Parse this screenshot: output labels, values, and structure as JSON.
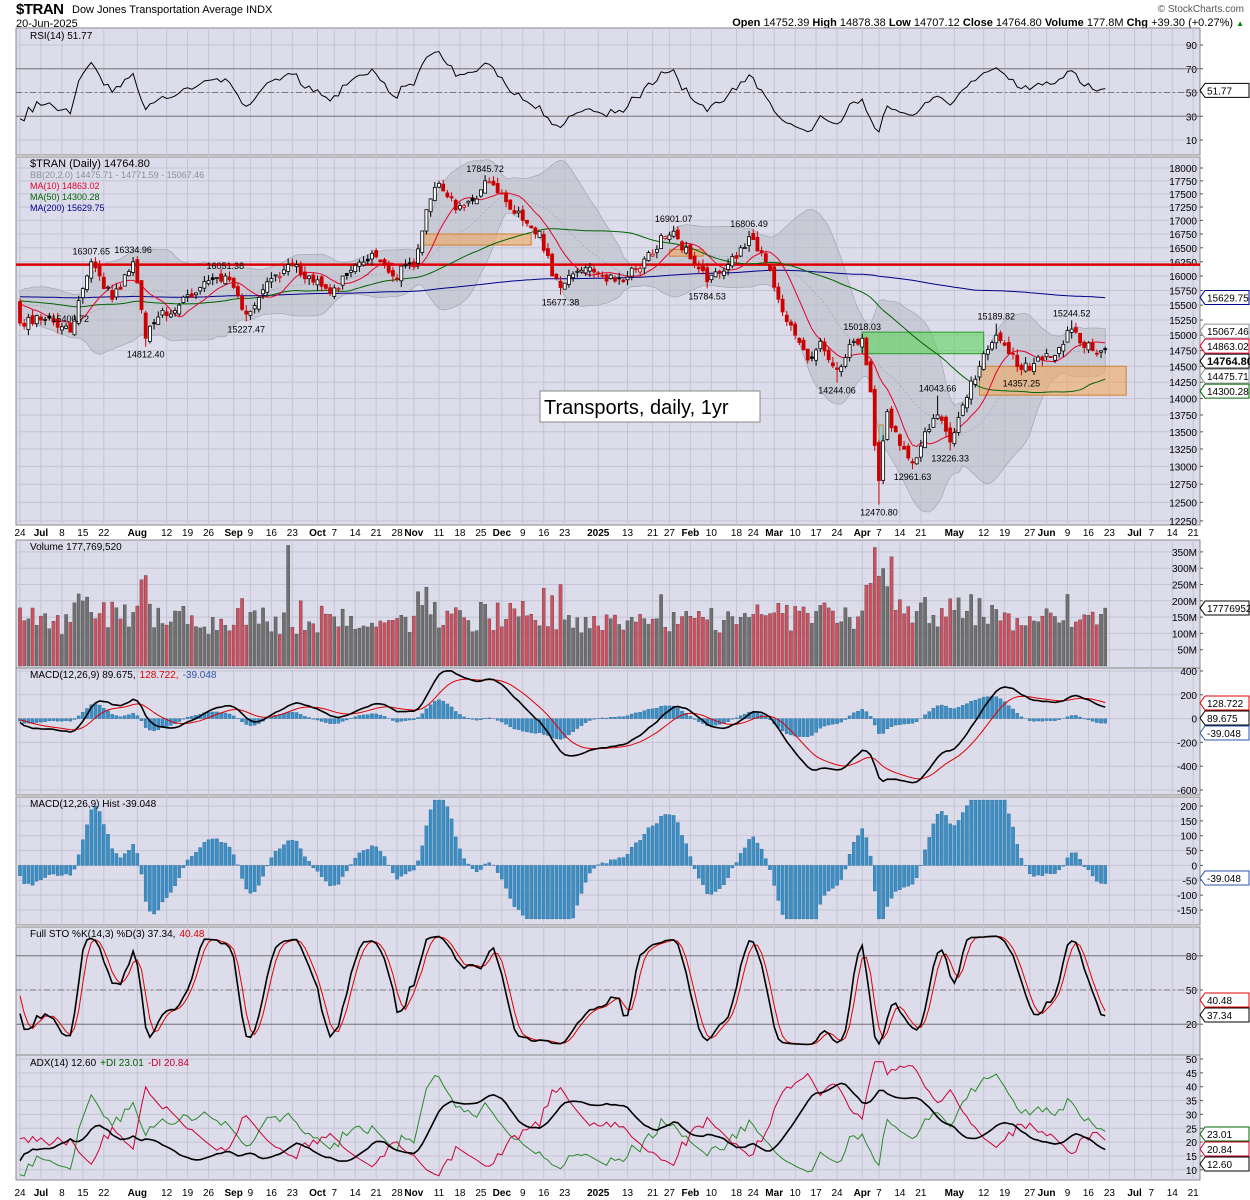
{
  "header": {
    "ticker": "$TRAN",
    "name": "Dow Jones Transportation Average INDX",
    "date": "20-Jun-2025",
    "brand": "© StockCharts.com",
    "open_label": "Open",
    "open": "14752.39",
    "high_label": "High",
    "high": "14878.38",
    "low_label": "Low",
    "low": "14707.12",
    "close_label": "Close",
    "close": "14764.80",
    "volume_label": "Volume",
    "volume": "177.8M",
    "chg_label": "Chg",
    "chg": "+39.30 (+0.27%)"
  },
  "colors": {
    "panel_bg": "#dcdcea",
    "grid": "#c4c4d6",
    "up": "#000000",
    "down": "#cc0000",
    "ma10": "#e8002a",
    "ma50": "#006400",
    "ma200": "#00008b",
    "bb": "#a0a8b0",
    "hist": "#3b8fc4",
    "resistance": "#dd0000"
  },
  "chart_data": [
    {
      "type": "line",
      "panel": "rsi",
      "legend": "RSI(14) 51.77",
      "last_value": "51.77",
      "ylim": [
        0,
        100
      ],
      "ticks": [
        "90",
        "70",
        "50",
        "30",
        "10"
      ],
      "levels": [
        70,
        30
      ]
    },
    {
      "type": "candlestick",
      "panel": "price",
      "yscale": "log",
      "ylim": [
        12250,
        18000
      ],
      "legend": [
        {
          "text": "$TRAN (Daily) 14764.80",
          "color": "#000000"
        },
        {
          "text": "BB(20,2.0) 14475.71 - 14771.59 - 15067.46",
          "color": "#8a9098"
        },
        {
          "text": "MA(10) 14863.02",
          "color": "#e8002a"
        },
        {
          "text": "MA(50) 14300.28",
          "color": "#006400"
        },
        {
          "text": "MA(200) 15629.75",
          "color": "#00008b"
        }
      ],
      "ticks": [
        "18000",
        "17750",
        "17500",
        "17250",
        "17000",
        "16750",
        "16500",
        "16250",
        "16000",
        "15750",
        "15500",
        "15250",
        "15000",
        "14750",
        "14500",
        "14250",
        "14000",
        "13750",
        "13500",
        "13250",
        "13000",
        "12750",
        "12500",
        "12250"
      ],
      "value_tags": [
        {
          "text": "15629.75",
          "value": 15629.75,
          "color": "#00008b"
        },
        {
          "text": "15067.46",
          "value": 15067.46,
          "color": "#8a9098"
        },
        {
          "text": "14863.02",
          "value": 14863.02,
          "color": "#e8002a"
        },
        {
          "text": "14764.80",
          "value": 14764.8,
          "color": "#000000",
          "bold": true
        },
        {
          "text": "14475.71",
          "value": 14475.71,
          "color": "#8a9098"
        },
        {
          "text": "14300.28",
          "value": 14300.28,
          "color": "#006400"
        }
      ],
      "closes": [
        [
          "2024-06-24",
          15200
        ],
        [
          "2024-07-01",
          15250
        ],
        [
          "2024-07-10",
          15050
        ],
        [
          "2024-07-16",
          16000
        ],
        [
          "2024-07-17",
          16250
        ],
        [
          "2024-07-24",
          15600
        ],
        [
          "2024-07-31",
          16250
        ],
        [
          "2024-08-05",
          14950
        ],
        [
          "2024-08-08",
          15300
        ],
        [
          "2024-08-15",
          15500
        ],
        [
          "2024-08-22",
          15800
        ],
        [
          "2024-08-30",
          16000
        ],
        [
          "2024-09-06",
          15350
        ],
        [
          "2024-09-13",
          15900
        ],
        [
          "2024-09-20",
          16200
        ],
        [
          "2024-09-27",
          16000
        ],
        [
          "2024-10-04",
          15700
        ],
        [
          "2024-10-11",
          16100
        ],
        [
          "2024-10-18",
          16400
        ],
        [
          "2024-10-25",
          16000
        ],
        [
          "2024-11-01",
          16200
        ],
        [
          "2024-11-06",
          17200
        ],
        [
          "2024-11-11",
          17700
        ],
        [
          "2024-11-15",
          17200
        ],
        [
          "2024-11-22",
          17400
        ],
        [
          "2024-11-26",
          17750
        ],
        [
          "2024-12-02",
          17500
        ],
        [
          "2024-12-09",
          17000
        ],
        [
          "2024-12-13",
          16800
        ],
        [
          "2024-12-18",
          16000
        ],
        [
          "2024-12-20",
          15800
        ],
        [
          "2024-12-27",
          16100
        ],
        [
          "2025-01-03",
          16000
        ],
        [
          "2025-01-10",
          15900
        ],
        [
          "2025-01-17",
          16300
        ],
        [
          "2025-01-24",
          16700
        ],
        [
          "2025-01-28",
          16800
        ],
        [
          "2025-02-03",
          16300
        ],
        [
          "2025-02-07",
          15900
        ],
        [
          "2025-02-14",
          16200
        ],
        [
          "2025-02-19",
          16500
        ],
        [
          "2025-02-21",
          16700
        ],
        [
          "2025-02-28",
          16100
        ],
        [
          "2025-03-04",
          15600
        ],
        [
          "2025-03-10",
          15000
        ],
        [
          "2025-03-13",
          14600
        ],
        [
          "2025-03-18",
          14900
        ],
        [
          "2025-03-24",
          14450
        ],
        [
          "2025-03-28",
          14900
        ],
        [
          "2025-04-01",
          14950
        ],
        [
          "2025-04-03",
          14100
        ],
        [
          "2025-04-04",
          13300
        ],
        [
          "2025-04-07",
          12800
        ],
        [
          "2025-04-09",
          13800
        ],
        [
          "2025-04-14",
          13300
        ],
        [
          "2025-04-17",
          13050
        ],
        [
          "2025-04-22",
          13500
        ],
        [
          "2025-04-25",
          13750
        ],
        [
          "2025-04-30",
          13350
        ],
        [
          "2025-05-05",
          13900
        ],
        [
          "2025-05-12",
          14700
        ],
        [
          "2025-05-15",
          15000
        ],
        [
          "2025-05-21",
          14700
        ],
        [
          "2025-05-23",
          14450
        ],
        [
          "2025-05-30",
          14600
        ],
        [
          "2025-06-05",
          14800
        ],
        [
          "2025-06-10",
          15100
        ],
        [
          "2025-06-13",
          14800
        ],
        [
          "2025-06-20",
          14764.8
        ]
      ],
      "price_labels": [
        {
          "text": "16307.65",
          "date": "2024-07-17",
          "value": 16307.65,
          "pos": "above"
        },
        {
          "text": "16334.96",
          "date": "2024-07-31",
          "value": 16334.96,
          "pos": "above"
        },
        {
          "text": "15400.72",
          "date": "2024-07-10",
          "value": 15400.72,
          "pos": "below"
        },
        {
          "text": "14812.40",
          "date": "2024-08-05",
          "value": 14812.4,
          "pos": "below"
        },
        {
          "text": "16051.38",
          "date": "2024-08-30",
          "value": 16051.38,
          "pos": "above"
        },
        {
          "text": "15227.47",
          "date": "2024-09-06",
          "value": 15227.47,
          "pos": "below"
        },
        {
          "text": "17845.72",
          "date": "2024-11-26",
          "value": 17845.72,
          "pos": "above"
        },
        {
          "text": "15677.38",
          "date": "2024-12-20",
          "value": 15677.38,
          "pos": "below"
        },
        {
          "text": "16901.07",
          "date": "2025-01-28",
          "value": 16901.07,
          "pos": "above"
        },
        {
          "text": "15784.53",
          "date": "2025-02-07",
          "value": 15784.53,
          "pos": "below"
        },
        {
          "text": "16806.49",
          "date": "2025-02-21",
          "value": 16806.49,
          "pos": "above"
        },
        {
          "text": "14244.06",
          "date": "2025-03-24",
          "value": 14244.06,
          "pos": "below"
        },
        {
          "text": "15018.03",
          "date": "2025-04-01",
          "value": 15018.03,
          "pos": "above"
        },
        {
          "text": "12470.80",
          "date": "2025-04-07",
          "value": 12470.8,
          "pos": "below"
        },
        {
          "text": "12961.63",
          "date": "2025-04-17",
          "value": 12961.63,
          "pos": "below"
        },
        {
          "text": "14043.66",
          "date": "2025-04-25",
          "value": 14043.66,
          "pos": "above"
        },
        {
          "text": "13226.33",
          "date": "2025-04-30",
          "value": 13226.33,
          "pos": "below"
        },
        {
          "text": "15189.82",
          "date": "2025-05-15",
          "value": 15189.82,
          "pos": "above"
        },
        {
          "text": "14357.25",
          "date": "2025-05-23",
          "value": 14357.25,
          "pos": "below"
        },
        {
          "text": "15244.52",
          "date": "2025-06-10",
          "value": 15244.52,
          "pos": "above"
        }
      ],
      "annotations": {
        "text_box": "Transports, daily, 1yr",
        "resistance_line": 16200,
        "zones": [
          {
            "from": "2024-11-05",
            "to": "2024-12-11",
            "low": 16550,
            "high": 16750,
            "color": "#f0a860"
          },
          {
            "from": "2025-01-27",
            "to": "2025-02-06",
            "low": 16350,
            "high": 16470,
            "color": "#f0a860"
          },
          {
            "from": "2025-04-01",
            "to": "2025-05-12",
            "low": 14700,
            "high": 15050,
            "color": "#5cd65c"
          },
          {
            "from": "2025-04-07",
            "to": "2025-04-08",
            "low": 13350,
            "high": 13600,
            "color": "#66e0e0"
          },
          {
            "from": "2025-05-09",
            "to": "2025-06-27",
            "low": 14050,
            "high": 14500,
            "color": "#f0a860"
          }
        ]
      }
    },
    {
      "type": "bar",
      "panel": "volume",
      "legend": "Volume 177,769,520",
      "last_value": "177769520",
      "ylim": [
        0,
        370000000
      ],
      "ticks": [
        "350M",
        "300M",
        "250M",
        "200M",
        "150M",
        "100M",
        "50M"
      ],
      "notable": [
        [
          "2024-09-20",
          370000000
        ],
        [
          "2025-04-10",
          335000000
        ],
        [
          "2024-12-20",
          250000000
        ],
        [
          "2025-06-20",
          177769520
        ]
      ]
    },
    {
      "type": "line",
      "panel": "macd",
      "legend": [
        "MACD(12,26,9) 89.675,",
        "128.722,",
        "-39.048"
      ],
      "tags": [
        {
          "text": "128.722",
          "color": "#e00000"
        },
        {
          "text": "89.675",
          "color": "#000000"
        },
        {
          "text": "-39.048",
          "color": "#2a56a8"
        }
      ],
      "ylim": [
        -640,
        420
      ],
      "ticks": [
        "400",
        "200",
        "0",
        "-200",
        "-400",
        "-600"
      ]
    },
    {
      "type": "bar",
      "panel": "macd_hist",
      "legend": "MACD(12,26,9) Hist -39.048",
      "tag": "-39.048",
      "ylim": [
        -180,
        230
      ],
      "ticks": [
        "200",
        "150",
        "100",
        "50",
        "0",
        "-50",
        "-100",
        "-150"
      ]
    },
    {
      "type": "line",
      "panel": "stochastic",
      "legend": [
        "Full STO %K(14,3) %D(3) 37.34,",
        "40.48"
      ],
      "tags": [
        {
          "text": "40.48",
          "color": "#e00000"
        },
        {
          "text": "37.34",
          "color": "#000000"
        }
      ],
      "ylim": [
        0,
        100
      ],
      "ticks": [
        "80",
        "50",
        "20"
      ],
      "levels": [
        80,
        20
      ]
    },
    {
      "type": "line",
      "panel": "adx",
      "legend": [
        "ADX(14) 12.60",
        "+DI 23.01",
        "-DI 20.84"
      ],
      "tags": [
        {
          "text": "23.01",
          "color": "#006400"
        },
        {
          "text": "20.84",
          "color": "#cc0033"
        },
        {
          "text": "12.60",
          "color": "#000000"
        }
      ],
      "ylim": [
        8,
        51
      ],
      "ticks": [
        "50",
        "45",
        "40",
        "35",
        "30",
        "25",
        "20",
        "15",
        "10"
      ]
    }
  ],
  "date_axis": [
    [
      "24",
      "2024-06-24"
    ],
    [
      "Jul",
      "2024-07-01"
    ],
    [
      "8",
      "2024-07-08"
    ],
    [
      "15",
      "2024-07-15"
    ],
    [
      "22",
      "2024-07-22"
    ],
    [
      "Aug",
      "2024-08-01"
    ],
    [
      "12",
      "2024-08-12"
    ],
    [
      "19",
      "2024-08-19"
    ],
    [
      "26",
      "2024-08-26"
    ],
    [
      "Sep",
      "2024-09-03"
    ],
    [
      "9",
      "2024-09-09"
    ],
    [
      "16",
      "2024-09-16"
    ],
    [
      "23",
      "2024-09-23"
    ],
    [
      "Oct",
      "2024-10-01"
    ],
    [
      "7",
      "2024-10-07"
    ],
    [
      "14",
      "2024-10-14"
    ],
    [
      "21",
      "2024-10-21"
    ],
    [
      "28",
      "2024-10-28"
    ],
    [
      "Nov",
      "2024-11-01"
    ],
    [
      "11",
      "2024-11-11"
    ],
    [
      "18",
      "2024-11-18"
    ],
    [
      "25",
      "2024-11-25"
    ],
    [
      "Dec",
      "2024-12-02"
    ],
    [
      "9",
      "2024-12-09"
    ],
    [
      "16",
      "2024-12-16"
    ],
    [
      "23",
      "2024-12-23"
    ],
    [
      "2025",
      "2025-01-02"
    ],
    [
      "13",
      "2025-01-13"
    ],
    [
      "21",
      "2025-01-21"
    ],
    [
      "27",
      "2025-01-27"
    ],
    [
      "Feb",
      "2025-02-03"
    ],
    [
      "10",
      "2025-02-10"
    ],
    [
      "18",
      "2025-02-18"
    ],
    [
      "24",
      "2025-02-24"
    ],
    [
      "Mar",
      "2025-03-03"
    ],
    [
      "10",
      "2025-03-10"
    ],
    [
      "17",
      "2025-03-17"
    ],
    [
      "24",
      "2025-03-24"
    ],
    [
      "Apr",
      "2025-04-01"
    ],
    [
      "7",
      "2025-04-07"
    ],
    [
      "14",
      "2025-04-14"
    ],
    [
      "21",
      "2025-04-21"
    ],
    [
      "May",
      "2025-05-01"
    ],
    [
      "12",
      "2025-05-12"
    ],
    [
      "19",
      "2025-05-19"
    ],
    [
      "27",
      "2025-05-27"
    ],
    [
      "Jun",
      "2025-06-02"
    ],
    [
      "9",
      "2025-06-09"
    ],
    [
      "16",
      "2025-06-16"
    ],
    [
      "23",
      "2025-06-23"
    ],
    [
      "Jul",
      "2025-07-01"
    ],
    [
      "7",
      "2025-07-07"
    ],
    [
      "14",
      "2025-07-14"
    ],
    [
      "21",
      "2025-07-21"
    ]
  ]
}
